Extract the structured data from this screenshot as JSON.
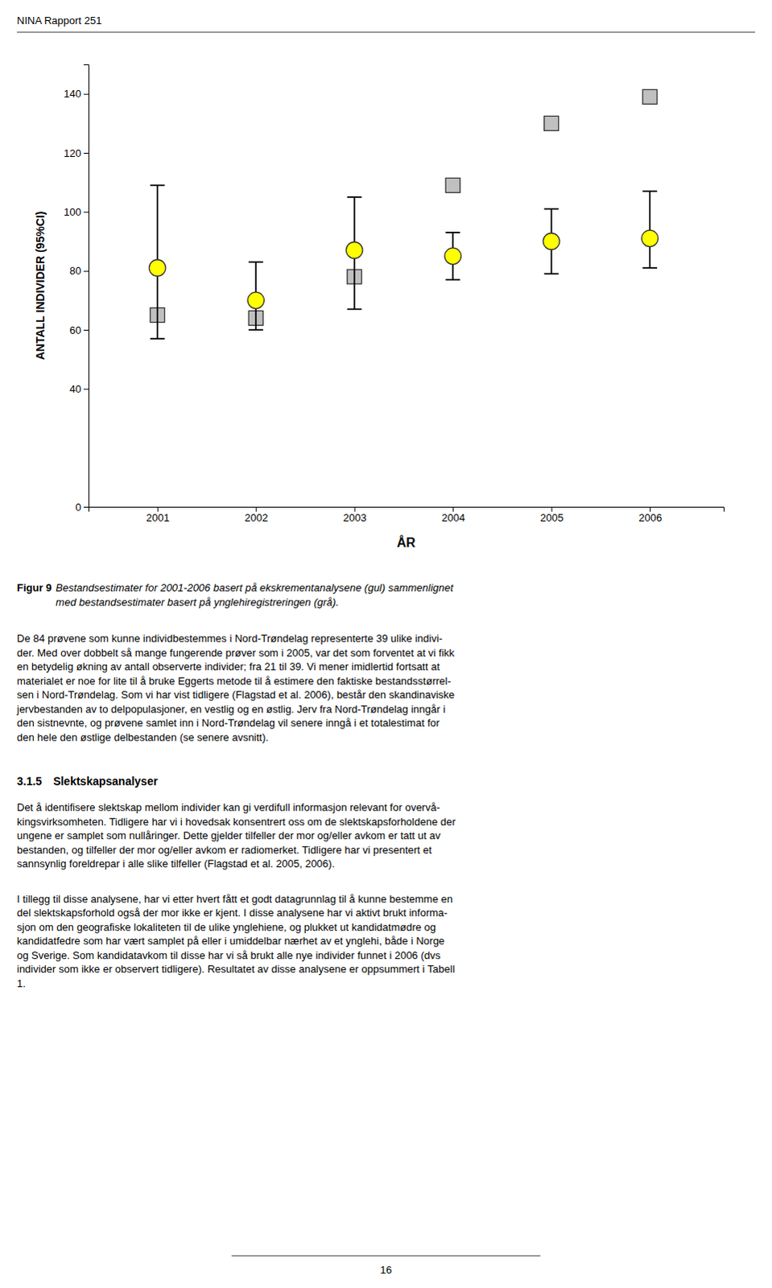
{
  "page": {
    "header": "NINA Rapport 251",
    "figure_label": "Figur 9",
    "caption": [
      "Bestandsestimater for 2001-2006 basert på ekskrementanalysene (gul) sammenlignet",
      "med bestandsestimater basert på ynglehiregistreringen (grå)."
    ],
    "paragraphs": [
      [
        "De 84 prøvene som kunne individbestemmes i Nord-Trøndelag representerte 39 ulike indivi-",
        "der. Med over dobbelt så mange fungerende prøver som i 2005, var det som forventet at vi fikk",
        "en betydelig økning av antall observerte individer; fra 21 til 39. Vi mener imidlertid fortsatt at",
        "materialet er noe for lite til å bruke Eggerts metode til å estimere den faktiske bestandsstørrel-",
        "sen i Nord-Trøndelag. Som vi har vist tidligere (Flagstad et al. 2006), består den skandinaviske",
        "jervbestanden av to delpopulasjoner, en vestlig og en østlig. Jerv fra Nord-Trøndelag inngår i",
        "den sistnevnte, og prøvene samlet inn i Nord-Trøndelag vil senere inngå i et totalestimat for",
        "den hele den østlige delbestanden (se senere avsnitt)."
      ],
      [
        "Det å identifisere slektskap mellom individer kan gi verdifull informasjon relevant for overvå-",
        "kingsvirksomheten. Tidligere har vi i hovedsak konsentrert oss om de slektskapsforholdene der",
        "ungene er samplet som nullåringer. Dette gjelder tilfeller der mor og/eller avkom er tatt ut av",
        "bestanden, og tilfeller der mor og/eller avkom er radiomerket. Tidligere har vi presentert et",
        "sannsynlig foreldrepar i alle slike tilfeller (Flagstad et al. 2005, 2006)."
      ],
      [
        "I tillegg til disse analysene, har vi etter hvert fått et godt datagrunnlag til å kunne bestemme en",
        "del slektskapsforhold også der mor ikke er kjent. I disse analysene har vi aktivt brukt informa-",
        "sjon om den geografiske lokaliteten til de ulike ynglehiene, og plukket ut kandidatmødre og",
        "kandidatfedre som har vært samplet på eller i umiddelbar nærhet av et ynglehi, både i Norge",
        "og Sverige. Som kandidatavkom til disse har vi så brukt alle nye individer funnet i 2006 (dvs",
        "individer som ikke er observert tidligere). Resultatet av disse analysene er oppsummert i Tabell",
        "1."
      ]
    ],
    "section_number": "3.1.5",
    "section_title": "Slektskapsanalyser",
    "page_number": "16"
  },
  "chart_data": {
    "type": "scatter",
    "x_label": "ÅR",
    "y_label": "ANTALL INDIVIDER (95%CI)",
    "x": [
      2001,
      2002,
      2003,
      2004,
      2005,
      2006
    ],
    "series": [
      {
        "color": "#C0C0C0",
        "marker": "square",
        "values": [
          65,
          64,
          78,
          109,
          130,
          139
        ]
      },
      {
        "color": "#FFFF00",
        "marker": "circle",
        "values": [
          81,
          70,
          87,
          85,
          90,
          91
        ],
        "ci_low": [
          57,
          60,
          67,
          77,
          79,
          81
        ],
        "ci_high": [
          109,
          83,
          105,
          93,
          101,
          107
        ]
      }
    ],
    "xlim": [
      2000.3,
      2006.75
    ],
    "xticks": [
      2001,
      2002,
      2003,
      2004,
      2005,
      2006
    ],
    "ylim": [
      0,
      150
    ],
    "yticks": [
      0,
      40,
      60,
      80,
      100,
      120,
      140
    ],
    "grid": false
  }
}
